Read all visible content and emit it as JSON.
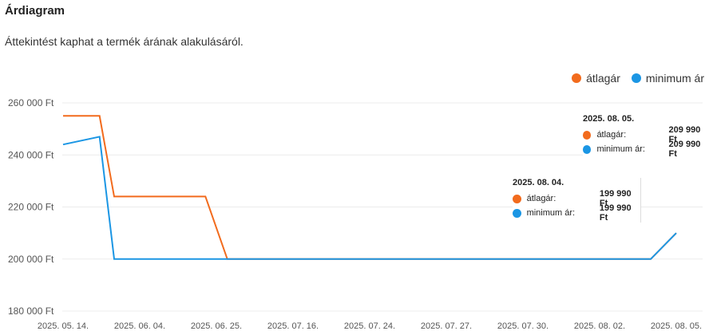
{
  "title": "Árdiagram",
  "subtitle": "Áttekintést kaphat a termék árának alakulásáról.",
  "legend": [
    {
      "label": "átlagár",
      "color": "#f26b1d"
    },
    {
      "label": "minimum ár",
      "color": "#1b96e4"
    }
  ],
  "tooltips": [
    {
      "date": "2025. 08. 05.",
      "rows": [
        {
          "name": "átlagár:",
          "value": "209 990 Ft",
          "color": "#f26b1d"
        },
        {
          "name": "minimum ár:",
          "value": "209 990 Ft",
          "color": "#1b96e4"
        }
      ]
    },
    {
      "date": "2025. 08. 04.",
      "rows": [
        {
          "name": "átlagár:",
          "value": "199 990 Ft",
          "color": "#f26b1d"
        },
        {
          "name": "minimum ár:",
          "value": "199 990 Ft",
          "color": "#1b96e4"
        }
      ]
    }
  ],
  "chart_data": {
    "type": "line",
    "x_tick_labels": [
      "2025. 05. 14.",
      "2025. 06. 04.",
      "2025. 06. 25.",
      "2025. 07. 16.",
      "2025. 07. 24.",
      "2025. 07. 27.",
      "2025. 07. 30.",
      "2025. 08. 02.",
      "2025. 08. 05."
    ],
    "y_tick_labels": [
      "260 000 Ft",
      "240 000 Ft",
      "220 000 Ft",
      "200 000 Ft",
      "180 000 Ft"
    ],
    "ylim": [
      180000,
      260000
    ],
    "grid": true,
    "legend_position": "top-right",
    "series": [
      {
        "name": "átlagár",
        "color": "#f26b1d",
        "points": [
          {
            "x": "2025. 05. 14.",
            "y": 255000
          },
          {
            "x": "2025. 05. 24.",
            "y": 255000
          },
          {
            "x": "2025. 05. 28.",
            "y": 224000
          },
          {
            "x": "2025. 06. 22.",
            "y": 224000
          },
          {
            "x": "2025. 06. 28.",
            "y": 200000
          },
          {
            "x": "2025. 08. 04.",
            "y": 199990
          },
          {
            "x": "2025. 08. 05.",
            "y": 209990
          }
        ]
      },
      {
        "name": "minimum ár",
        "color": "#1b96e4",
        "points": [
          {
            "x": "2025. 05. 14.",
            "y": 244000
          },
          {
            "x": "2025. 05. 24.",
            "y": 247000
          },
          {
            "x": "2025. 05. 28.",
            "y": 200000
          },
          {
            "x": "2025. 08. 04.",
            "y": 199990
          },
          {
            "x": "2025. 08. 05.",
            "y": 209990
          }
        ]
      }
    ]
  }
}
